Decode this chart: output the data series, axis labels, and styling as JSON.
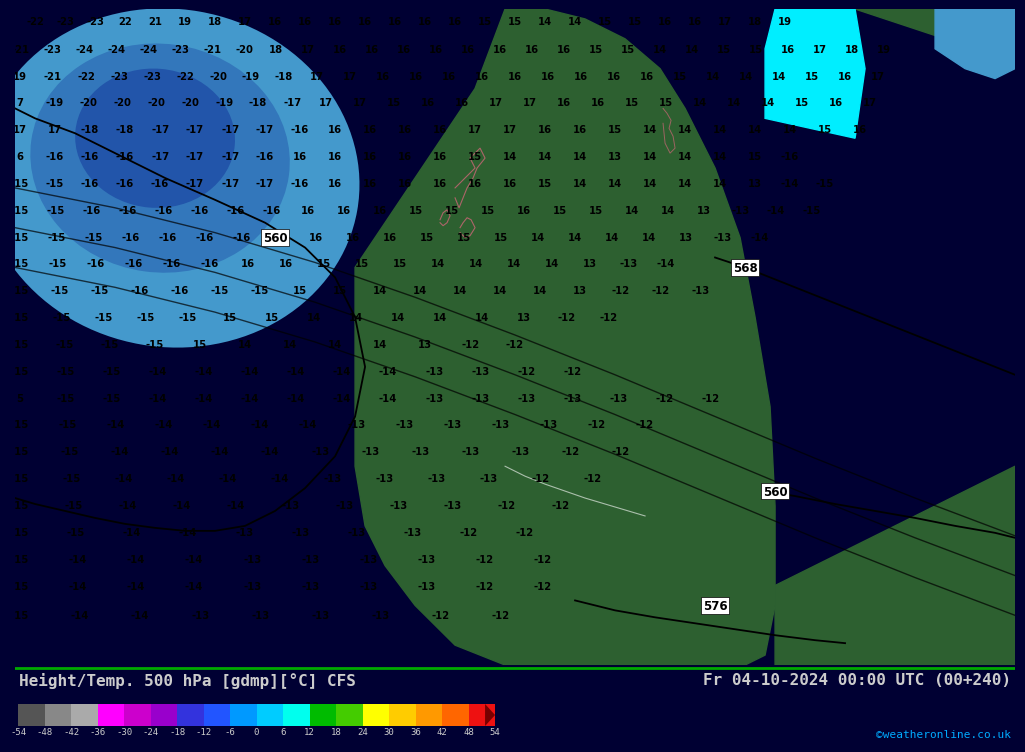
{
  "title_left": "Height/Temp. 500 hPa [gdmp][°C] CFS",
  "title_right": "Fr 04-10-2024 00:00 UTC (00+240)",
  "credit": "©weatheronline.co.uk",
  "colorbar_values": [
    -54,
    -48,
    -42,
    -36,
    -30,
    -24,
    -18,
    -12,
    -6,
    0,
    6,
    12,
    18,
    24,
    30,
    36,
    42,
    48,
    54
  ],
  "cmap_colors": [
    "#555555",
    "#888888",
    "#aaaaaa",
    "#ff00ff",
    "#cc00cc",
    "#9900cc",
    "#3333dd",
    "#2255ff",
    "#0099ff",
    "#00ccff",
    "#00ffee",
    "#00bb00",
    "#44cc00",
    "#ffff00",
    "#ffcc00",
    "#ff9900",
    "#ff6600",
    "#ee1111",
    "#aa0000",
    "#770000"
  ],
  "bg_cyan": "#00eeff",
  "blue_outer": "#4499cc",
  "blue_mid": "#3377bb",
  "blue_inner": "#2255aa",
  "green_land": "#2d6030",
  "footer_bg": "#000033",
  "title_color": "#cccccc",
  "credit_color": "#00aaff",
  "geo_line_color": "#000000",
  "temp_label_color": "#000000",
  "coast_pink": "#cc6677"
}
